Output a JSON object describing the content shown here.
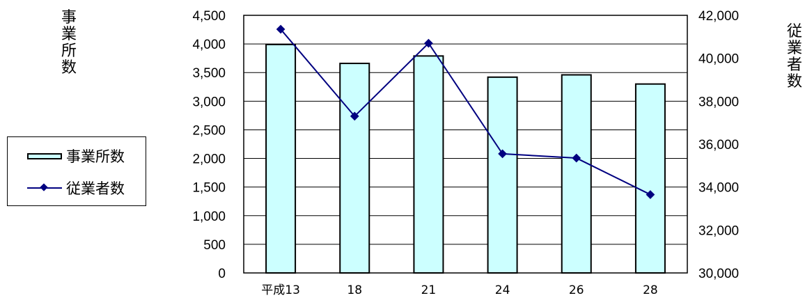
{
  "chart_data": {
    "type": "bar",
    "categories": [
      "平成13",
      "18",
      "21",
      "24",
      "26",
      "28"
    ],
    "series": [
      {
        "name": "事業所数",
        "type": "bar",
        "axis": "left",
        "color": "#ccffff",
        "values": [
          3990,
          3660,
          3790,
          3420,
          3460,
          3300
        ]
      },
      {
        "name": "従業者数",
        "type": "line",
        "axis": "right",
        "color": "#000080",
        "values": [
          41350,
          37300,
          40700,
          35550,
          35350,
          33650
        ]
      }
    ],
    "ylabel_left": [
      "事",
      "業",
      "所",
      "数"
    ],
    "ylabel_right": [
      "従",
      "業",
      "者",
      "数"
    ],
    "ylim_left": [
      0,
      4500
    ],
    "ylim_right": [
      30000,
      42000
    ],
    "yticks_left": [
      "0",
      "500",
      "1,000",
      "1,500",
      "2,000",
      "2,500",
      "3,000",
      "3,500",
      "4,000",
      "4,500"
    ],
    "yticks_right": [
      "30,000",
      "32,000",
      "34,000",
      "36,000",
      "38,000",
      "40,000",
      "42,000"
    ],
    "grid": true,
    "legend_position": "left"
  }
}
